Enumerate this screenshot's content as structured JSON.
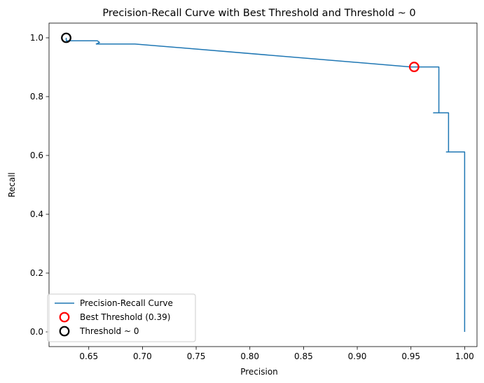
{
  "chart_data": {
    "type": "line",
    "title": "Precision-Recall Curve with Best Threshold and Threshold ~ 0",
    "xlabel": "Precision",
    "ylabel": "Recall",
    "xlim": [
      0.613,
      1.0115
    ],
    "ylim": [
      -0.05,
      1.05
    ],
    "xticks": [
      0.65,
      0.7,
      0.75,
      0.8,
      0.85,
      0.9,
      0.95,
      1.0
    ],
    "xtick_labels": [
      "0.65",
      "0.70",
      "0.75",
      "0.80",
      "0.85",
      "0.90",
      "0.95",
      "1.00"
    ],
    "yticks": [
      0.0,
      0.2,
      0.4,
      0.6,
      0.8,
      1.0
    ],
    "ytick_labels": [
      "0.0",
      "0.2",
      "0.4",
      "0.6",
      "0.8",
      "1.0"
    ],
    "grid": false,
    "legend_position": "lower-left",
    "series": [
      {
        "name": "Precision-Recall Curve",
        "color": "#1f77b4",
        "x": [
          0.629,
          0.629,
          0.658,
          0.66,
          0.657,
          0.693,
          0.95,
          0.976,
          0.976,
          0.971,
          0.985,
          0.985,
          0.983,
          1.0,
          1.0
        ],
        "y": [
          1.0,
          0.99,
          0.99,
          0.984,
          0.979,
          0.979,
          0.901,
          0.901,
          0.745,
          0.745,
          0.745,
          0.612,
          0.612,
          0.612,
          0.0
        ]
      }
    ],
    "markers": [
      {
        "name": "Best Threshold (0.39)",
        "color": "#ff0000",
        "x": 0.953,
        "y": 0.901
      },
      {
        "name": "Threshold ~ 0",
        "color": "#000000",
        "x": 0.629,
        "y": 1.0
      }
    ]
  }
}
